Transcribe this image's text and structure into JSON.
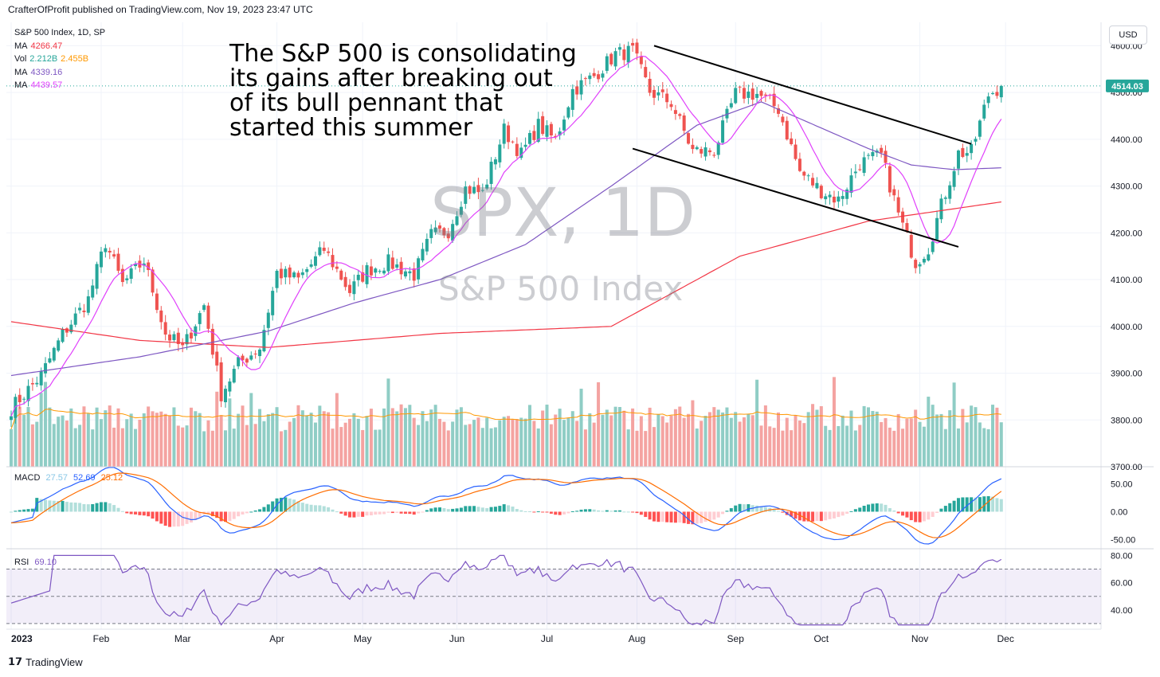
{
  "header": {
    "published": "CrafterOfProfit published on TradingView.com, Nov 19, 2023 23:47 UTC"
  },
  "legend": {
    "symbol": "S&P 500 Index, 1D, SP",
    "ma1": {
      "label": "MA",
      "value": "4266.47",
      "color": "#f23645"
    },
    "vol": {
      "label": "Vol",
      "value1": "2.212B",
      "value2": "2.455B",
      "color1": "#26a69a",
      "color2": "#ff9800"
    },
    "ma2": {
      "label": "MA",
      "value": "4339.16",
      "color": "#7e57c2"
    },
    "ma3": {
      "label": "MA",
      "value": "4439.57",
      "color": "#e040fb"
    }
  },
  "annotation": {
    "line1": "The S&P 500 is consolidating",
    "line2": "its gains after breaking out",
    "line3": "of its bull pennant that",
    "line4": "started this summer"
  },
  "watermark": {
    "symbol": "SPX, 1D",
    "name": "S&P 500 Index"
  },
  "currency": "USD",
  "last_price": "4514.03",
  "macd_legend": {
    "label": "MACD",
    "v1": "27.57",
    "v2": "52.69",
    "v3": "25.12",
    "c1": "#89c7e6",
    "c2": "#2962ff",
    "c3": "#ff6d00"
  },
  "rsi_legend": {
    "label": "RSI",
    "value": "69.10",
    "color": "#7e57c2"
  },
  "footer": {
    "brand": "TradingView"
  },
  "chart_data": {
    "type": "candlestick",
    "title": "S&P 500 Index, 1D, SP",
    "x_ticks": [
      "2023",
      "Feb",
      "Mar",
      "Apr",
      "May",
      "Jun",
      "Jul",
      "Aug",
      "Sep",
      "Oct",
      "Nov",
      "Dec"
    ],
    "x_tick_index": [
      0,
      21,
      40,
      62,
      82,
      104,
      125,
      146,
      169,
      189,
      212,
      232
    ],
    "price_ylim": [
      3700,
      4650
    ],
    "price_ticks": [
      "4600.00",
      "4500.00",
      "4400.00",
      "4300.00",
      "4200.00",
      "4100.00",
      "4000.00",
      "3900.00",
      "3800.00",
      "3700.00"
    ],
    "price_tick_values": [
      4600,
      4500,
      4400,
      4300,
      4200,
      4100,
      4000,
      3900,
      3800,
      3700
    ],
    "close_anchors": [
      [
        0,
        3825
      ],
      [
        7,
        3895
      ],
      [
        12,
        3983
      ],
      [
        18,
        4058
      ],
      [
        22,
        4180
      ],
      [
        26,
        4090
      ],
      [
        31,
        4140
      ],
      [
        36,
        3985
      ],
      [
        40,
        3952
      ],
      [
        45,
        4045
      ],
      [
        49,
        3855
      ],
      [
        53,
        3920
      ],
      [
        58,
        3955
      ],
      [
        62,
        4115
      ],
      [
        67,
        4100
      ],
      [
        73,
        4165
      ],
      [
        79,
        4075
      ],
      [
        83,
        4120
      ],
      [
        88,
        4137
      ],
      [
        94,
        4110
      ],
      [
        98,
        4195
      ],
      [
        102,
        4205
      ],
      [
        106,
        4295
      ],
      [
        110,
        4285
      ],
      [
        115,
        4420
      ],
      [
        119,
        4368
      ],
      [
        123,
        4430
      ],
      [
        127,
        4398
      ],
      [
        131,
        4505
      ],
      [
        136,
        4535
      ],
      [
        141,
        4582
      ],
      [
        145,
        4588
      ],
      [
        149,
        4502
      ],
      [
        154,
        4478
      ],
      [
        159,
        4375
      ],
      [
        164,
        4375
      ],
      [
        169,
        4497
      ],
      [
        174,
        4497
      ],
      [
        179,
        4465
      ],
      [
        184,
        4330
      ],
      [
        189,
        4290
      ],
      [
        193,
        4270
      ],
      [
        198,
        4349
      ],
      [
        203,
        4365
      ],
      [
        207,
        4240
      ],
      [
        211,
        4137
      ],
      [
        214,
        4168
      ],
      [
        217,
        4258
      ],
      [
        221,
        4370
      ],
      [
        224,
        4373
      ],
      [
        228,
        4495
      ],
      [
        231,
        4514
      ]
    ],
    "ma_slow_anchors": [
      [
        0,
        4010
      ],
      [
        30,
        3970
      ],
      [
        60,
        3955
      ],
      [
        100,
        3985
      ],
      [
        140,
        4000
      ],
      [
        170,
        4150
      ],
      [
        200,
        4225
      ],
      [
        231,
        4266
      ]
    ],
    "ma_mid_anchors": [
      [
        0,
        3895
      ],
      [
        30,
        3935
      ],
      [
        60,
        3990
      ],
      [
        80,
        4050
      ],
      [
        100,
        4100
      ],
      [
        120,
        4175
      ],
      [
        140,
        4300
      ],
      [
        160,
        4430
      ],
      [
        175,
        4480
      ],
      [
        190,
        4420
      ],
      [
        200,
        4380
      ],
      [
        210,
        4345
      ],
      [
        220,
        4335
      ],
      [
        231,
        4339
      ]
    ],
    "channel_lines": [
      {
        "from": [
          150,
          4600
        ],
        "to": [
          224,
          4390
        ]
      },
      {
        "from": [
          145,
          4380
        ],
        "to": [
          221,
          4170
        ]
      }
    ],
    "volume_ylim": [
      0,
      4.2
    ],
    "volume_note": "volume in billions",
    "macd_ylim": [
      -65,
      72
    ],
    "macd_ticks": [
      "50.00",
      "0.00",
      "-50.00"
    ],
    "macd_tick_values": [
      50,
      0,
      -50
    ],
    "rsi_ylim": [
      27,
      82
    ],
    "rsi_ticks": [
      "80.00",
      "60.00",
      "40.00"
    ],
    "rsi_tick_values": [
      80,
      60,
      40
    ],
    "rsi_band": [
      30,
      70
    ],
    "series_colors": {
      "up": "#26a69a",
      "down": "#ef5350",
      "ma_slow": "#f23645",
      "ma_mid": "#7e57c2",
      "ma_fast": "#e040fb",
      "vol_ma": "#ff9800",
      "macd": "#2962ff",
      "signal": "#ff6d00",
      "rsi": "#7e57c2"
    }
  }
}
